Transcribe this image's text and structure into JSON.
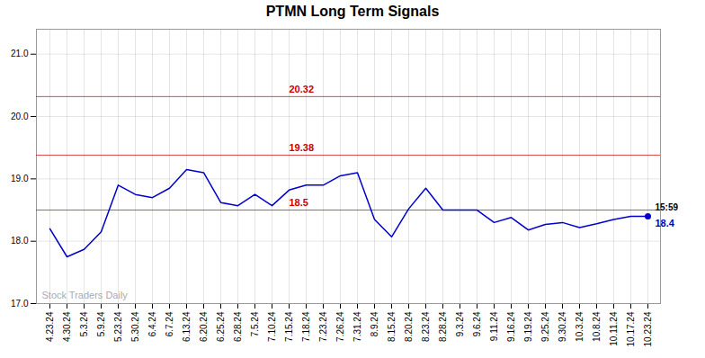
{
  "chart_data": {
    "type": "line",
    "title": "PTMN Long Term Signals",
    "categories": [
      "4.23.24",
      "4.30.24",
      "5.3.24",
      "5.9.24",
      "5.23.24",
      "5.30.24",
      "6.4.24",
      "6.7.24",
      "6.13.24",
      "6.20.24",
      "6.25.24",
      "6.28.24",
      "7.5.24",
      "7.10.24",
      "7.15.24",
      "7.18.24",
      "7.23.24",
      "7.26.24",
      "7.31.24",
      "8.9.24",
      "8.15.24",
      "8.20.24",
      "8.23.24",
      "8.28.24",
      "9.3.24",
      "9.6.24",
      "9.11.24",
      "9.16.24",
      "9.19.24",
      "9.25.24",
      "9.30.24",
      "10.3.24",
      "10.8.24",
      "10.11.24",
      "10.17.24",
      "10.23.24"
    ],
    "values": [
      18.2,
      17.75,
      17.87,
      18.15,
      18.9,
      18.75,
      18.7,
      18.85,
      19.15,
      19.1,
      18.62,
      18.57,
      18.75,
      18.57,
      18.82,
      18.9,
      18.9,
      19.05,
      19.1,
      18.35,
      18.07,
      18.52,
      18.85,
      18.5,
      18.5,
      18.5,
      18.3,
      18.38,
      18.18,
      18.27,
      18.3,
      18.22,
      18.28,
      18.35,
      18.4,
      18.4
    ],
    "color": "#0000cc",
    "ylim": [
      17.0,
      21.4
    ],
    "yticks": [
      17,
      18,
      19,
      20,
      21
    ],
    "grid": true,
    "hlines": [
      {
        "y": 20.32,
        "label": "20.32",
        "color": "#cc0000"
      },
      {
        "y": 19.38,
        "label": "19.38",
        "color": "#cc0000"
      },
      {
        "y": 18.5,
        "label": "18.5",
        "color": "#cc0000"
      }
    ],
    "annotations": [
      {
        "text": "15:59",
        "x": "10.23.24",
        "y": 18.4
      },
      {
        "text": "18.4",
        "x": "10.23.24",
        "y": 18.4
      },
      {
        "text": "Stock Traders Daily"
      }
    ]
  }
}
